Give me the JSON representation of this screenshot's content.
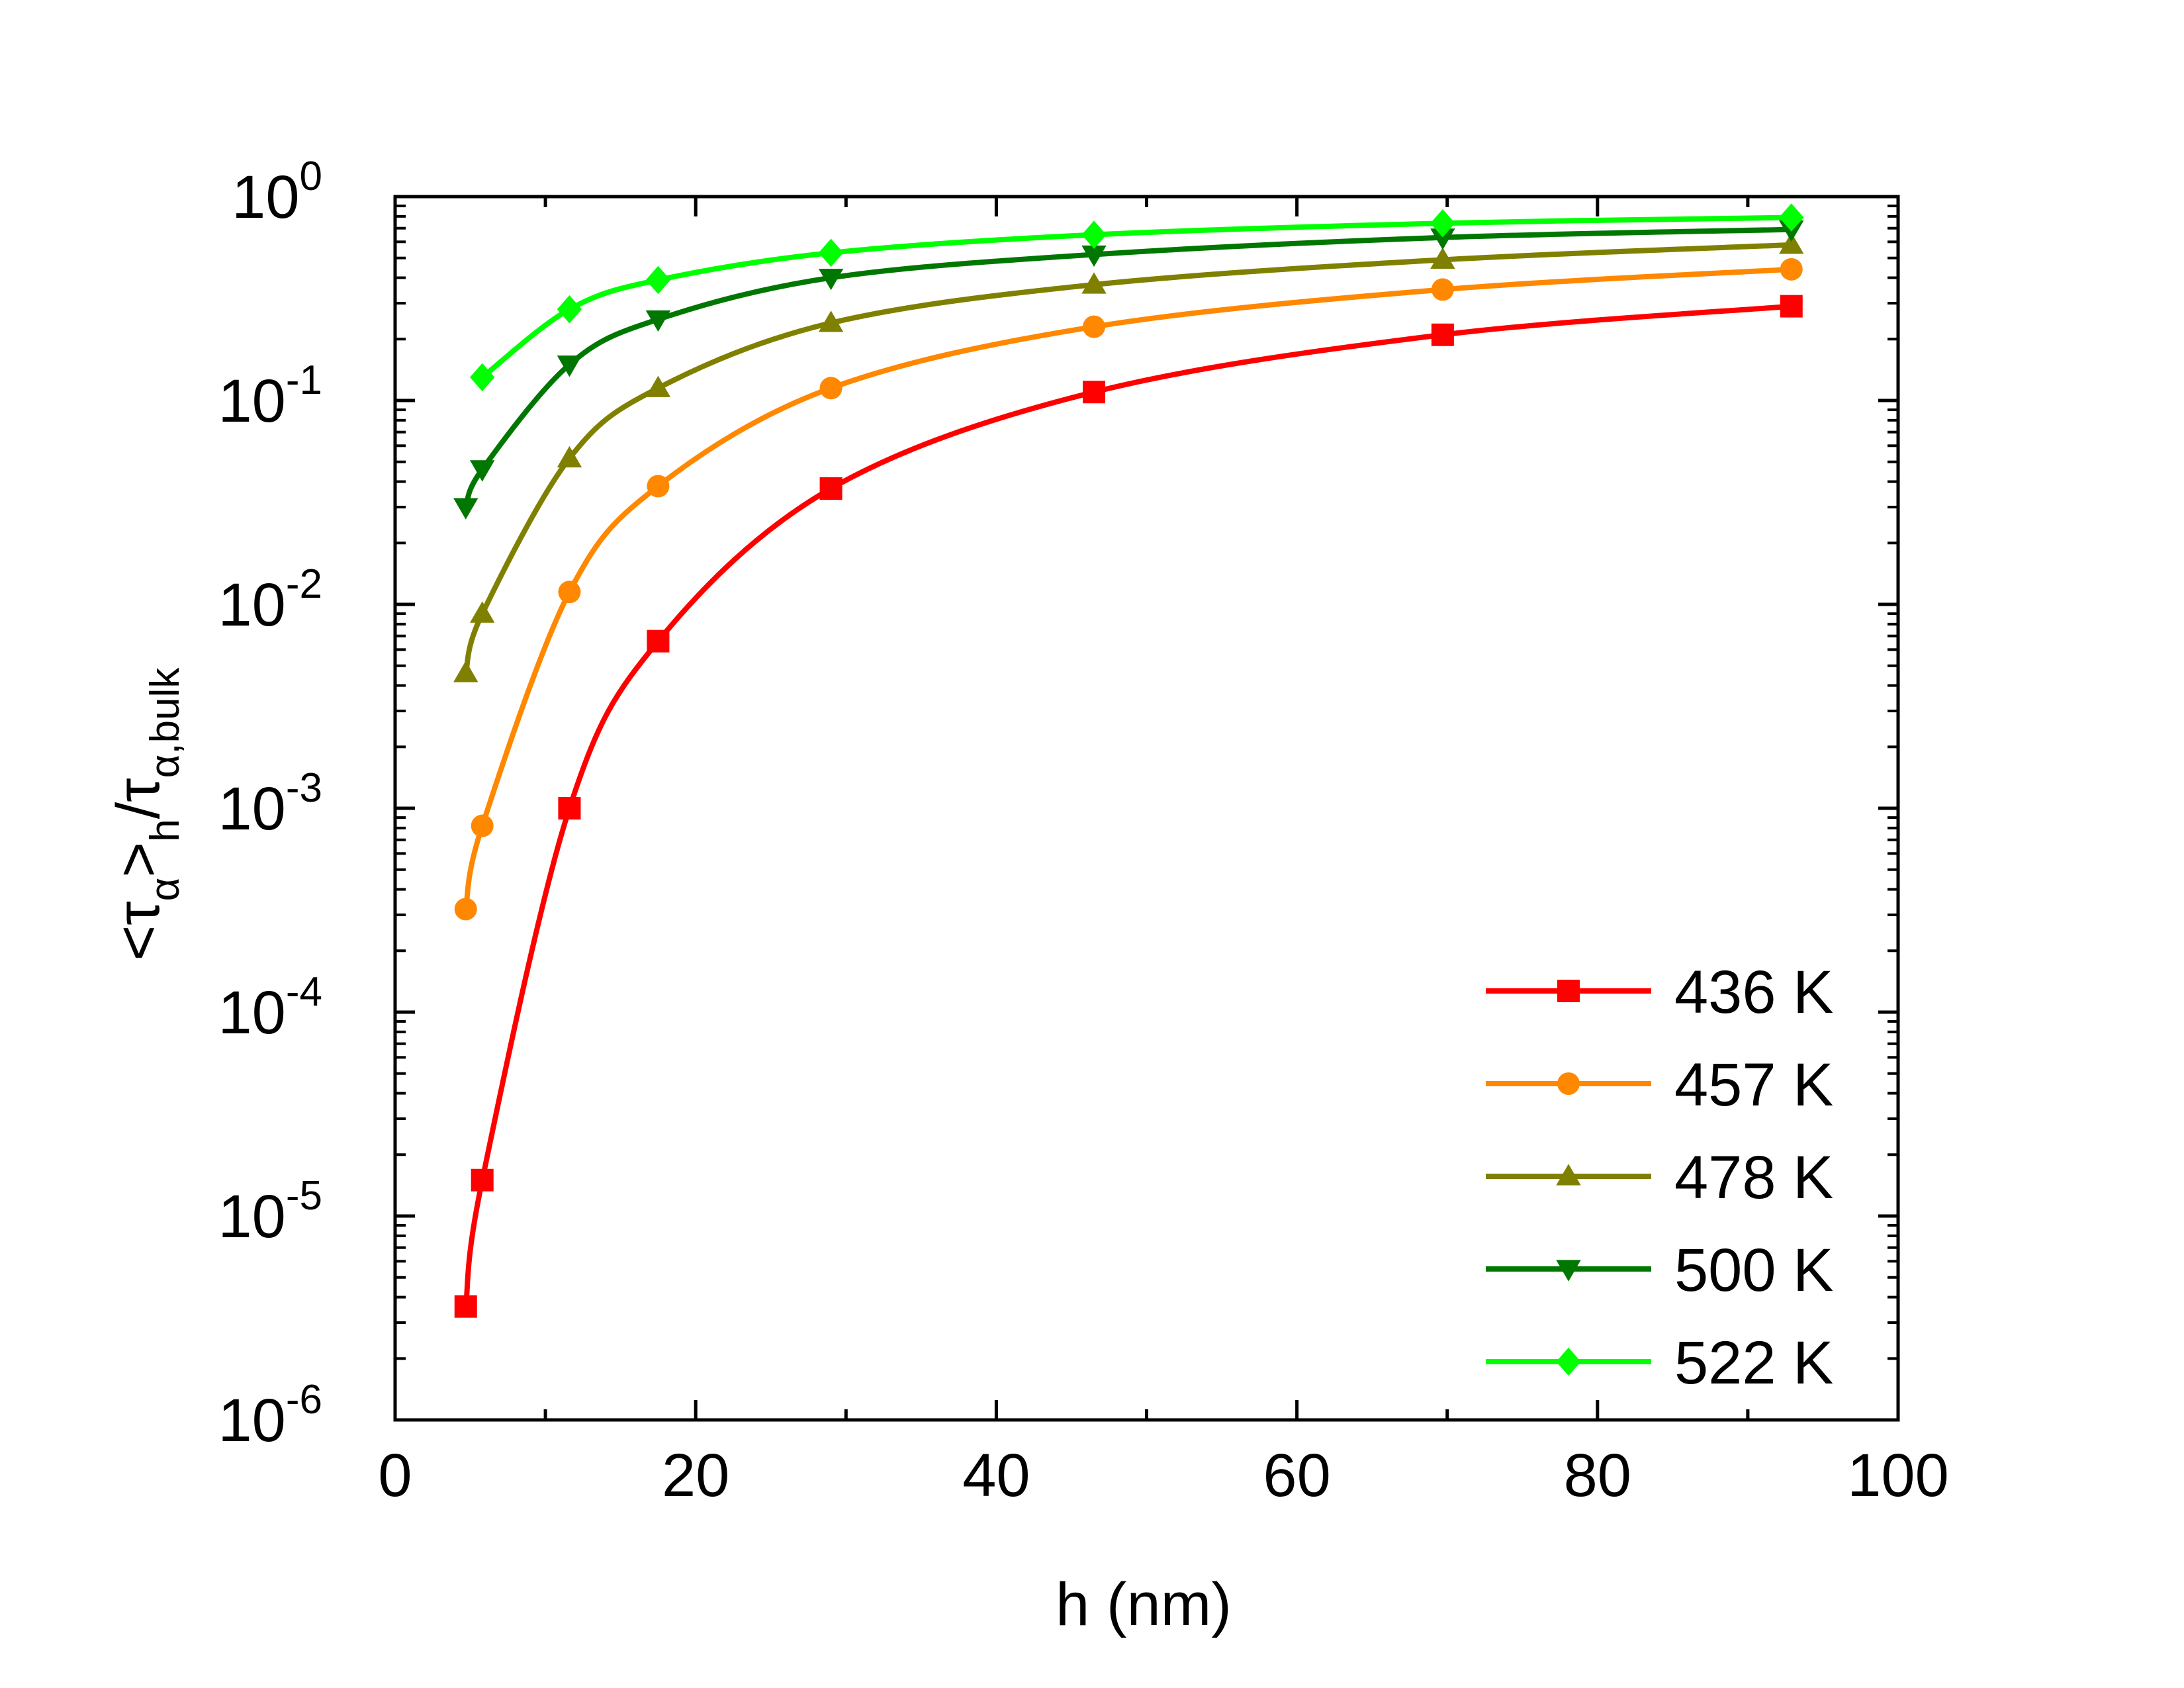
{
  "chart_data": {
    "type": "line",
    "title": "",
    "xlabel": "h (nm)",
    "ylabel_parts": [
      "<τ",
      "α",
      ">",
      "h",
      "/τ",
      "α,bulk"
    ],
    "xlim": [
      0,
      100
    ],
    "ylim_log10": [
      -6,
      0
    ],
    "x_ticks": [
      0,
      20,
      40,
      60,
      80,
      100
    ],
    "x_tick_labels": [
      "0",
      "20",
      "40",
      "60",
      "80",
      "100"
    ],
    "y_tick_exponents": [
      0,
      -1,
      -2,
      -3,
      -4,
      -5,
      -6
    ],
    "y_tick_labels": [
      "10",
      "10",
      "10",
      "10",
      "10",
      "10",
      "10"
    ],
    "y_tick_sups": [
      "0",
      "-1",
      "-2",
      "-3",
      "-4",
      "-5",
      "-6"
    ],
    "grid": false,
    "legend_position": "bottom-right",
    "series": [
      {
        "name": "436 K",
        "color": "#ff0000",
        "marker": "square",
        "x": [
          4.7,
          5.8,
          11.6,
          17.5,
          29,
          46.5,
          69.7,
          92.9
        ],
        "y": [
          3.6e-06,
          1.5e-05,
          0.001,
          0.0066,
          0.037,
          0.11,
          0.21,
          0.29
        ]
      },
      {
        "name": "457 K",
        "color": "#ff8800",
        "marker": "circle",
        "x": [
          4.7,
          5.8,
          11.6,
          17.5,
          29,
          46.5,
          69.7,
          92.9
        ],
        "y": [
          0.00032,
          0.00082,
          0.0115,
          0.038,
          0.115,
          0.23,
          0.35,
          0.44
        ]
      },
      {
        "name": "478 K",
        "color": "#808000",
        "marker": "triangle-up",
        "x": [
          4.7,
          5.8,
          11.6,
          17.5,
          29,
          46.5,
          69.7,
          92.9
        ],
        "y": [
          0.0046,
          0.009,
          0.052,
          0.115,
          0.24,
          0.37,
          0.49,
          0.58
        ]
      },
      {
        "name": "500 K",
        "color": "#007700",
        "marker": "triangle-down",
        "x": [
          4.7,
          5.8,
          11.6,
          17.5,
          29,
          46.5,
          69.7,
          92.9
        ],
        "y": [
          0.03,
          0.046,
          0.15,
          0.25,
          0.4,
          0.52,
          0.63,
          0.69
        ]
      },
      {
        "name": "522 K",
        "color": "#00ff00",
        "marker": "diamond",
        "x": [
          5.8,
          11.6,
          17.5,
          29,
          46.5,
          69.7,
          92.9
        ],
        "y": [
          0.13,
          0.28,
          0.39,
          0.53,
          0.65,
          0.74,
          0.79
        ]
      }
    ]
  }
}
